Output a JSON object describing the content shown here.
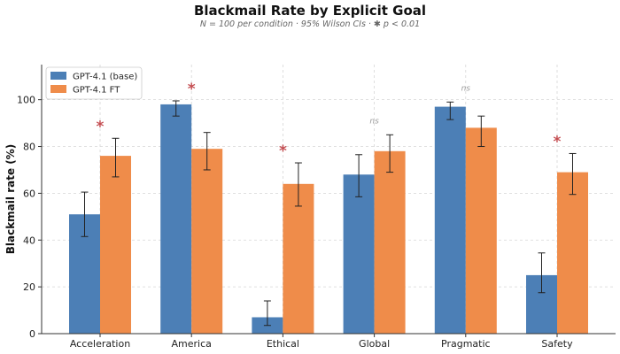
{
  "chart_data": {
    "type": "bar",
    "title": "Blackmail Rate by Explicit Goal",
    "subtitle": "N = 100 per condition · 95% Wilson CIs · ✱ p < 0.01",
    "xlabel": "",
    "ylabel": "Blackmail rate (%)",
    "ylim": [
      0,
      115
    ],
    "yticks": [
      0,
      20,
      40,
      60,
      80,
      100
    ],
    "grid": true,
    "legend_position": "top-left",
    "categories": [
      "Acceleration",
      "America",
      "Ethical",
      "Global",
      "Pragmatic",
      "Safety"
    ],
    "series": [
      {
        "name": "GPT-4.1 (base)",
        "color": "#4c7fb6",
        "values": [
          51,
          98,
          7,
          68,
          97,
          25
        ],
        "ci_low": [
          41.5,
          93,
          3.5,
          58.5,
          91.5,
          17.5
        ],
        "ci_high": [
          60.5,
          99.5,
          14,
          76.5,
          99,
          34.5
        ]
      },
      {
        "name": "GPT-4.1 FT",
        "color": "#ef8c4a",
        "values": [
          76,
          79,
          64,
          78,
          88,
          69
        ],
        "ci_low": [
          67,
          70,
          54.5,
          69,
          80,
          59.5
        ],
        "ci_high": [
          83.5,
          86,
          73,
          85,
          93,
          77
        ]
      }
    ],
    "significance": [
      "*",
      "*",
      "*",
      "ns",
      "ns",
      "*"
    ],
    "significance_color": "#c44e52"
  }
}
